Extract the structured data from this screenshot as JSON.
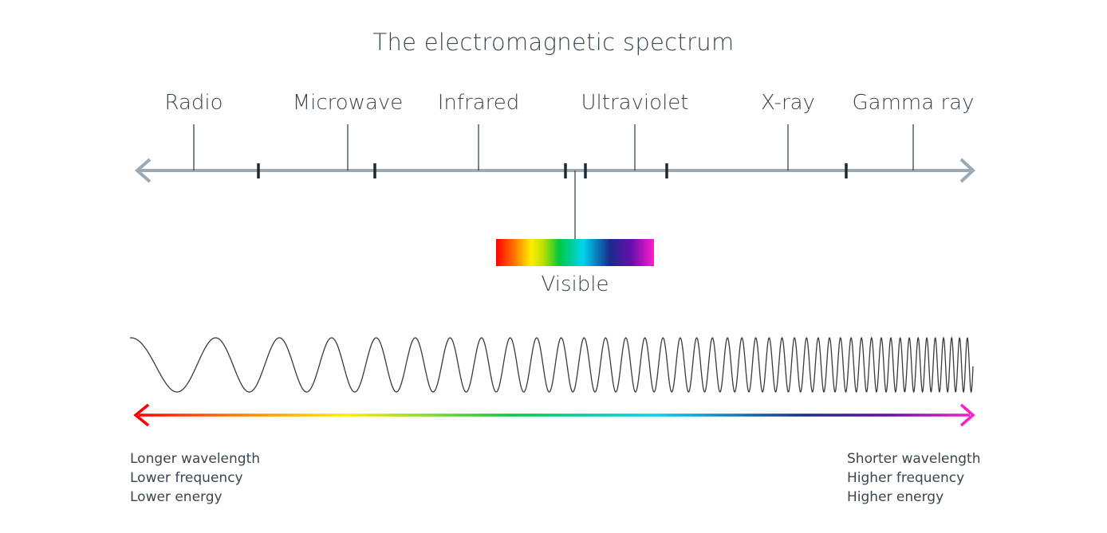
{
  "title": "The electromagnetic spectrum",
  "bands": [
    {
      "id": "radio",
      "label": "Radio"
    },
    {
      "id": "microwave",
      "label": "Microwave"
    },
    {
      "id": "infrared",
      "label": "Infrared"
    },
    {
      "id": "ultraviolet",
      "label": "Ultraviolet"
    },
    {
      "id": "xray",
      "label": "X-ray"
    },
    {
      "id": "gamma",
      "label": "Gamma ray"
    }
  ],
  "visible": {
    "label": "Visible"
  },
  "left_notes": [
    "Longer wavelength",
    "Lower frequency",
    "Lower energy"
  ],
  "right_notes": [
    "Shorter wavelength",
    "Higher frequency",
    "Higher energy"
  ],
  "colors": {
    "text": "#3a4650",
    "axis": "#9aa9b4",
    "tick": "#1e2a33",
    "wave": "#3a3a3a",
    "spectrum": [
      "#ff0000",
      "#ff7a00",
      "#ffee00",
      "#00c844",
      "#00d4ee",
      "#1a2b8c",
      "#6a0dad",
      "#ff1ec8"
    ]
  }
}
